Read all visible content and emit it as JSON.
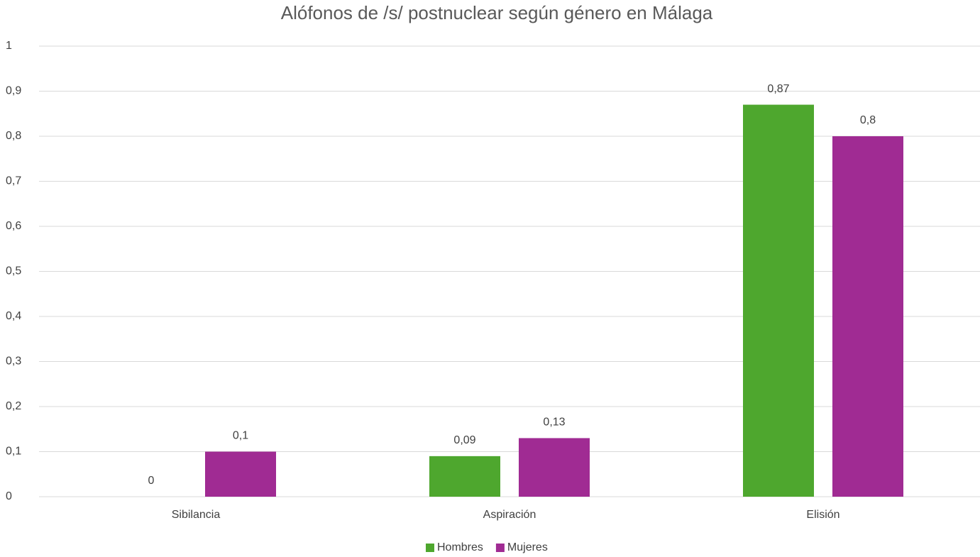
{
  "chart_data": {
    "type": "bar",
    "title": "Alófonos de /s/ postnuclear según género en Málaga",
    "categories": [
      "Sibilancia",
      "Aspiración",
      "Elisión"
    ],
    "series": [
      {
        "name": "Hombres",
        "color": "#4ea72e",
        "values": [
          0,
          0.09,
          0.87
        ],
        "value_labels": [
          "0",
          "0,09",
          "0,87"
        ]
      },
      {
        "name": "Mujeres",
        "color": "#a02b93",
        "values": [
          0.1,
          0.13,
          0.8
        ],
        "value_labels": [
          "0,1",
          "0,13",
          "0,8"
        ]
      }
    ],
    "ylim": [
      0,
      1
    ],
    "yticks": [
      0,
      {
        "value": 0.1,
        "label": "0,1"
      },
      {
        "value": 0.2,
        "label": "0,2"
      },
      {
        "value": 0.3,
        "label": "0,3"
      },
      {
        "value": 0.4,
        "label": "0,4"
      },
      {
        "value": 0.5,
        "label": "0,5"
      },
      {
        "value": 0.6,
        "label": "0,6"
      },
      {
        "value": 0.7,
        "label": "0,7"
      },
      {
        "value": 0.8,
        "label": "0,8"
      },
      {
        "value": 0.9,
        "label": "0,9"
      },
      1
    ],
    "grid": true,
    "legend": "bottom"
  }
}
